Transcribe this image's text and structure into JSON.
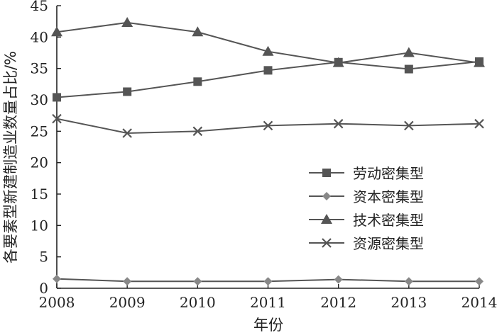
{
  "chart_data": {
    "type": "line",
    "xlabel": "年份",
    "ylabel": "各要素型新建制造业数量占比/%",
    "ylim": [
      0,
      45
    ],
    "yticks": [
      "0",
      "5",
      "10",
      "15",
      "20",
      "25",
      "30",
      "35",
      "40",
      "45"
    ],
    "x": [
      "2008",
      "2009",
      "2010",
      "2011",
      "2012",
      "2013",
      "2014"
    ],
    "grid": false,
    "legend_position": "right",
    "line_color": "#555555",
    "series": [
      {
        "name": "劳动密集型",
        "marker": "square",
        "values": [
          30.4,
          31.3,
          32.9,
          34.7,
          36.0,
          34.9,
          36.1
        ]
      },
      {
        "name": "资本密集型",
        "marker": "diamond",
        "values": [
          1.5,
          1.1,
          1.1,
          1.1,
          1.4,
          1.1,
          1.1
        ]
      },
      {
        "name": "技术密集型",
        "marker": "triangle",
        "values": [
          40.8,
          42.3,
          40.8,
          37.7,
          35.9,
          37.5,
          35.9
        ]
      },
      {
        "name": "资源密集型",
        "marker": "cross",
        "values": [
          27.0,
          24.7,
          25.0,
          25.9,
          26.2,
          25.9,
          26.2
        ]
      }
    ]
  }
}
